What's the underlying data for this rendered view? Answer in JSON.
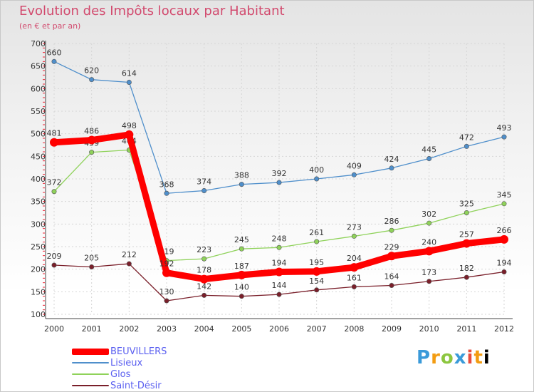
{
  "chart_data": {
    "type": "line",
    "title": "Evolution des Impôts locaux par Habitant",
    "subtitle": "(en € et par an)",
    "x": [
      "2000",
      "2001",
      "2002",
      "2003",
      "2004",
      "2005",
      "2006",
      "2007",
      "2008",
      "2009",
      "2010",
      "2011",
      "2012"
    ],
    "ylim": [
      100,
      700
    ],
    "yticks": [
      100,
      150,
      200,
      250,
      300,
      350,
      400,
      450,
      500,
      550,
      600,
      650,
      700
    ],
    "series": [
      {
        "name": "BEUVILLERS",
        "color": "#ff0000",
        "values": [
          481,
          486,
          498,
          192,
          178,
          187,
          194,
          195,
          204,
          229,
          240,
          257,
          266
        ]
      },
      {
        "name": "Lisieux",
        "color": "#4f8fcb",
        "values": [
          660,
          620,
          614,
          368,
          374,
          388,
          392,
          400,
          409,
          424,
          445,
          472,
          493
        ]
      },
      {
        "name": "Glos",
        "color": "#8fd25a",
        "values": [
          372,
          459,
          464,
          219,
          223,
          245,
          248,
          261,
          273,
          286,
          302,
          325,
          345
        ]
      },
      {
        "name": "Saint-Désir",
        "color": "#7a1f2a",
        "values": [
          209,
          205,
          212,
          130,
          142,
          140,
          144,
          154,
          161,
          164,
          173,
          182,
          194
        ]
      }
    ]
  },
  "legend": {
    "items": [
      {
        "label": "BEUVILLERS"
      },
      {
        "label": "Lisieux"
      },
      {
        "label": "Glos"
      },
      {
        "label": "Saint-Désir"
      }
    ]
  },
  "brand": {
    "letters": [
      "P",
      "r",
      "o",
      "x",
      "i",
      "t",
      "i"
    ]
  }
}
